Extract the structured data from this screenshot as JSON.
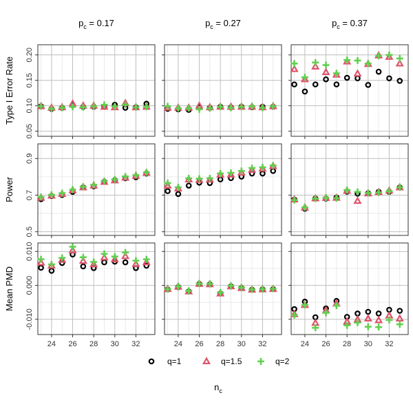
{
  "chart_data": {
    "type": "scatter",
    "x_axis": {
      "title_main": "n",
      "title_sub": "c",
      "ticks": [
        24,
        26,
        28,
        30,
        32
      ],
      "tick_labels": [
        "24",
        "26",
        "28",
        "30",
        "32"
      ],
      "range": [
        22.7,
        33.8
      ]
    },
    "columns": [
      {
        "label_main": "p",
        "label_sub": "c",
        "label_value": " = 0.17"
      },
      {
        "label_main": "p",
        "label_sub": "c",
        "label_value": " = 0.27"
      },
      {
        "label_main": "p",
        "label_sub": "c",
        "label_value": " = 0.37"
      }
    ],
    "rows": [
      {
        "ylabel": "Type I Error Rate",
        "ylim": [
          0.04,
          0.22
        ],
        "ticks": [
          0.05,
          0.1,
          0.15,
          0.2
        ],
        "tick_labels": [
          "0.05",
          "0.10",
          "0.15",
          "0.20"
        ],
        "grid_major": [
          0.05,
          0.1,
          0.15,
          0.2
        ]
      },
      {
        "ylabel": "Power",
        "ylim": [
          0.48,
          0.98
        ],
        "ticks": [
          0.5,
          0.7,
          0.9
        ],
        "tick_labels": [
          "0.5",
          "0.7",
          "0.9"
        ],
        "grid_major": [
          0.5,
          0.7,
          0.9
        ],
        "grid_minor": [
          0.6,
          0.8
        ]
      },
      {
        "ylabel": "Mean PMD",
        "ylim": [
          -0.0145,
          0.0125
        ],
        "ticks": [
          -0.01,
          0.0,
          0.01
        ],
        "tick_labels": [
          "-0.010",
          "0.000",
          "0.010"
        ],
        "grid_major": [
          -0.01,
          0.0,
          0.01
        ],
        "grid_minor": [
          -0.005,
          0.005
        ]
      }
    ],
    "x": [
      23,
      24,
      25,
      26,
      27,
      28,
      29,
      30,
      31,
      32,
      33
    ],
    "legend": {
      "position": "bottom",
      "entries": [
        "q=1",
        "q=1.5",
        "q=2"
      ]
    },
    "series": [
      {
        "name": "q=1",
        "marker": "circle",
        "color": "#000000",
        "panels": [
          [
            [
              0.099,
              0.094,
              0.096,
              0.101,
              0.098,
              0.098,
              0.098,
              0.102,
              0.096,
              0.097,
              0.104
            ],
            [
              0.094,
              0.093,
              0.092,
              0.097,
              0.096,
              0.098,
              0.097,
              0.098,
              0.097,
              0.098,
              0.098
            ],
            [
              0.142,
              0.128,
              0.142,
              0.152,
              0.142,
              0.155,
              0.154,
              0.141,
              0.167,
              0.154,
              0.149
            ]
          ],
          [
            [
              0.678,
              0.695,
              0.701,
              0.718,
              0.742,
              0.748,
              0.772,
              0.781,
              0.792,
              0.798,
              0.818
            ],
            [
              0.722,
              0.706,
              0.752,
              0.768,
              0.766,
              0.786,
              0.793,
              0.801,
              0.818,
              0.818,
              0.832
            ],
            [
              0.676,
              0.626,
              0.682,
              0.681,
              0.687,
              0.719,
              0.708,
              0.71,
              0.718,
              0.718,
              0.742
            ]
          ],
          [
            [
              0.0052,
              0.0043,
              0.0066,
              0.0091,
              0.0056,
              0.0051,
              0.0068,
              0.007,
              0.0068,
              0.0051,
              0.0058
            ],
            [
              -0.0012,
              -0.0005,
              -0.0018,
              0.0004,
              0.0003,
              -0.0024,
              -0.0003,
              -0.0008,
              -0.0013,
              -0.0012,
              -0.0011
            ],
            [
              -0.007,
              -0.0048,
              -0.0094,
              -0.0068,
              -0.0046,
              -0.0093,
              -0.0083,
              -0.0078,
              -0.0083,
              -0.0072,
              -0.0075
            ]
          ]
        ]
      },
      {
        "name": "q=1.5",
        "marker": "triangle",
        "color": "#DF536B",
        "panels": [
          [
            [
              0.099,
              0.096,
              0.097,
              0.104,
              0.1,
              0.1,
              0.098,
              0.097,
              0.105,
              0.097,
              0.098
            ],
            [
              0.096,
              0.096,
              0.096,
              0.1,
              0.097,
              0.098,
              0.098,
              0.098,
              0.098,
              0.097,
              0.099
            ],
            [
              0.172,
              0.152,
              0.177,
              0.166,
              0.161,
              0.187,
              0.163,
              0.182,
              0.199,
              0.196,
              0.183
            ]
          ],
          [
            [
              0.685,
              0.697,
              0.706,
              0.726,
              0.742,
              0.752,
              0.772,
              0.78,
              0.795,
              0.805,
              0.821
            ],
            [
              0.752,
              0.736,
              0.785,
              0.783,
              0.785,
              0.812,
              0.812,
              0.823,
              0.838,
              0.844,
              0.858
            ],
            [
              0.676,
              0.632,
              0.682,
              0.684,
              0.685,
              0.723,
              0.668,
              0.709,
              0.716,
              0.724,
              0.742
            ]
          ],
          [
            [
              0.0067,
              0.0058,
              0.0075,
              0.0103,
              0.0072,
              0.0062,
              0.0082,
              0.0077,
              0.0086,
              0.0063,
              0.0068
            ],
            [
              -0.0011,
              -0.0004,
              -0.0018,
              0.0004,
              0.0003,
              -0.0024,
              -0.0003,
              -0.0008,
              -0.0013,
              -0.0012,
              -0.0011
            ],
            [
              -0.0085,
              -0.0058,
              -0.0111,
              -0.0074,
              -0.0054,
              -0.0107,
              -0.0101,
              -0.0098,
              -0.0103,
              -0.0089,
              -0.0098
            ]
          ]
        ]
      },
      {
        "name": "q=2",
        "marker": "plus",
        "color": "#61D04F",
        "panels": [
          [
            [
              0.099,
              0.094,
              0.096,
              0.098,
              0.097,
              0.099,
              0.102,
              0.099,
              0.102,
              0.097,
              0.098
            ],
            [
              0.099,
              0.095,
              0.095,
              0.093,
              0.095,
              0.098,
              0.096,
              0.098,
              0.099,
              0.096,
              0.099
            ],
            [
              0.183,
              0.156,
              0.185,
              0.18,
              0.164,
              0.19,
              0.189,
              0.183,
              0.198,
              0.2,
              0.193
            ]
          ],
          [
            [
              0.69,
              0.702,
              0.711,
              0.73,
              0.746,
              0.756,
              0.777,
              0.786,
              0.802,
              0.809,
              0.824
            ],
            [
              0.766,
              0.743,
              0.792,
              0.79,
              0.792,
              0.818,
              0.822,
              0.832,
              0.848,
              0.852,
              0.862
            ],
            [
              0.673,
              0.633,
              0.681,
              0.686,
              0.683,
              0.728,
              0.718,
              0.712,
              0.714,
              0.722,
              0.743
            ]
          ],
          [
            [
              0.0077,
              0.0062,
              0.0081,
              0.0114,
              0.0083,
              0.0069,
              0.0093,
              0.0085,
              0.0097,
              0.0073,
              0.0077
            ],
            [
              -0.0011,
              -0.0003,
              -0.0016,
              0.0005,
              0.0005,
              -0.0021,
              -0.0001,
              -0.0006,
              -0.0012,
              -0.0011,
              -0.001
            ],
            [
              -0.0088,
              -0.0058,
              -0.0125,
              -0.0081,
              -0.006,
              -0.0118,
              -0.011,
              -0.0122,
              -0.0123,
              -0.0102,
              -0.0115
            ]
          ]
        ]
      }
    ]
  }
}
